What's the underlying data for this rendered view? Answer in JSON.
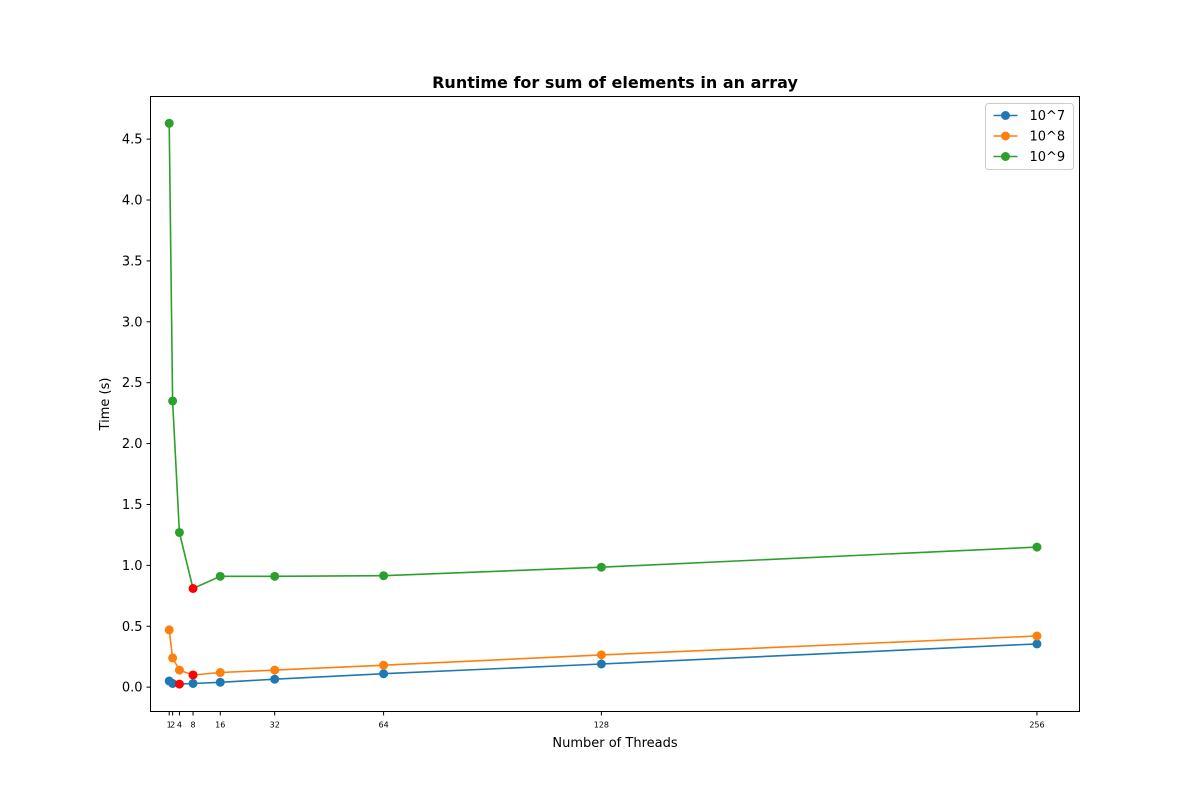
{
  "chart_data": {
    "type": "line",
    "title": "Runtime for sum of elements in an array",
    "xlabel": "Number of Threads",
    "ylabel": "Time (s)",
    "x": [
      1,
      2,
      4,
      8,
      16,
      32,
      64,
      128,
      256
    ],
    "x_tick_labels": [
      "1",
      "2",
      "4",
      "8",
      "16",
      "32",
      "64",
      "128",
      "256"
    ],
    "xlim": [
      -4.5,
      268.5
    ],
    "ylim": [
      -0.2,
      4.85
    ],
    "y_ticks": [
      0.0,
      0.5,
      1.0,
      1.5,
      2.0,
      2.5,
      3.0,
      3.5,
      4.0,
      4.5
    ],
    "y_tick_labels": [
      "0.0",
      "0.5",
      "1.0",
      "1.5",
      "2.0",
      "2.5",
      "3.0",
      "3.5",
      "4.0",
      "4.5"
    ],
    "grid": false,
    "legend_position": "top-right",
    "series": [
      {
        "name": "10^7",
        "color": "#1f77b4",
        "values": [
          0.05,
          0.03,
          0.025,
          0.03,
          0.04,
          0.065,
          0.11,
          0.19,
          0.355
        ],
        "highlight_index": 2
      },
      {
        "name": "10^8",
        "color": "#ff7f0e",
        "values": [
          0.47,
          0.24,
          0.14,
          0.1,
          0.12,
          0.14,
          0.18,
          0.265,
          0.42
        ],
        "highlight_index": 3
      },
      {
        "name": "10^9",
        "color": "#2ca02c",
        "values": [
          4.63,
          2.35,
          1.27,
          0.81,
          0.91,
          0.91,
          0.915,
          0.985,
          1.15
        ],
        "highlight_index": 3
      }
    ],
    "highlight_color": "#ff0000"
  }
}
